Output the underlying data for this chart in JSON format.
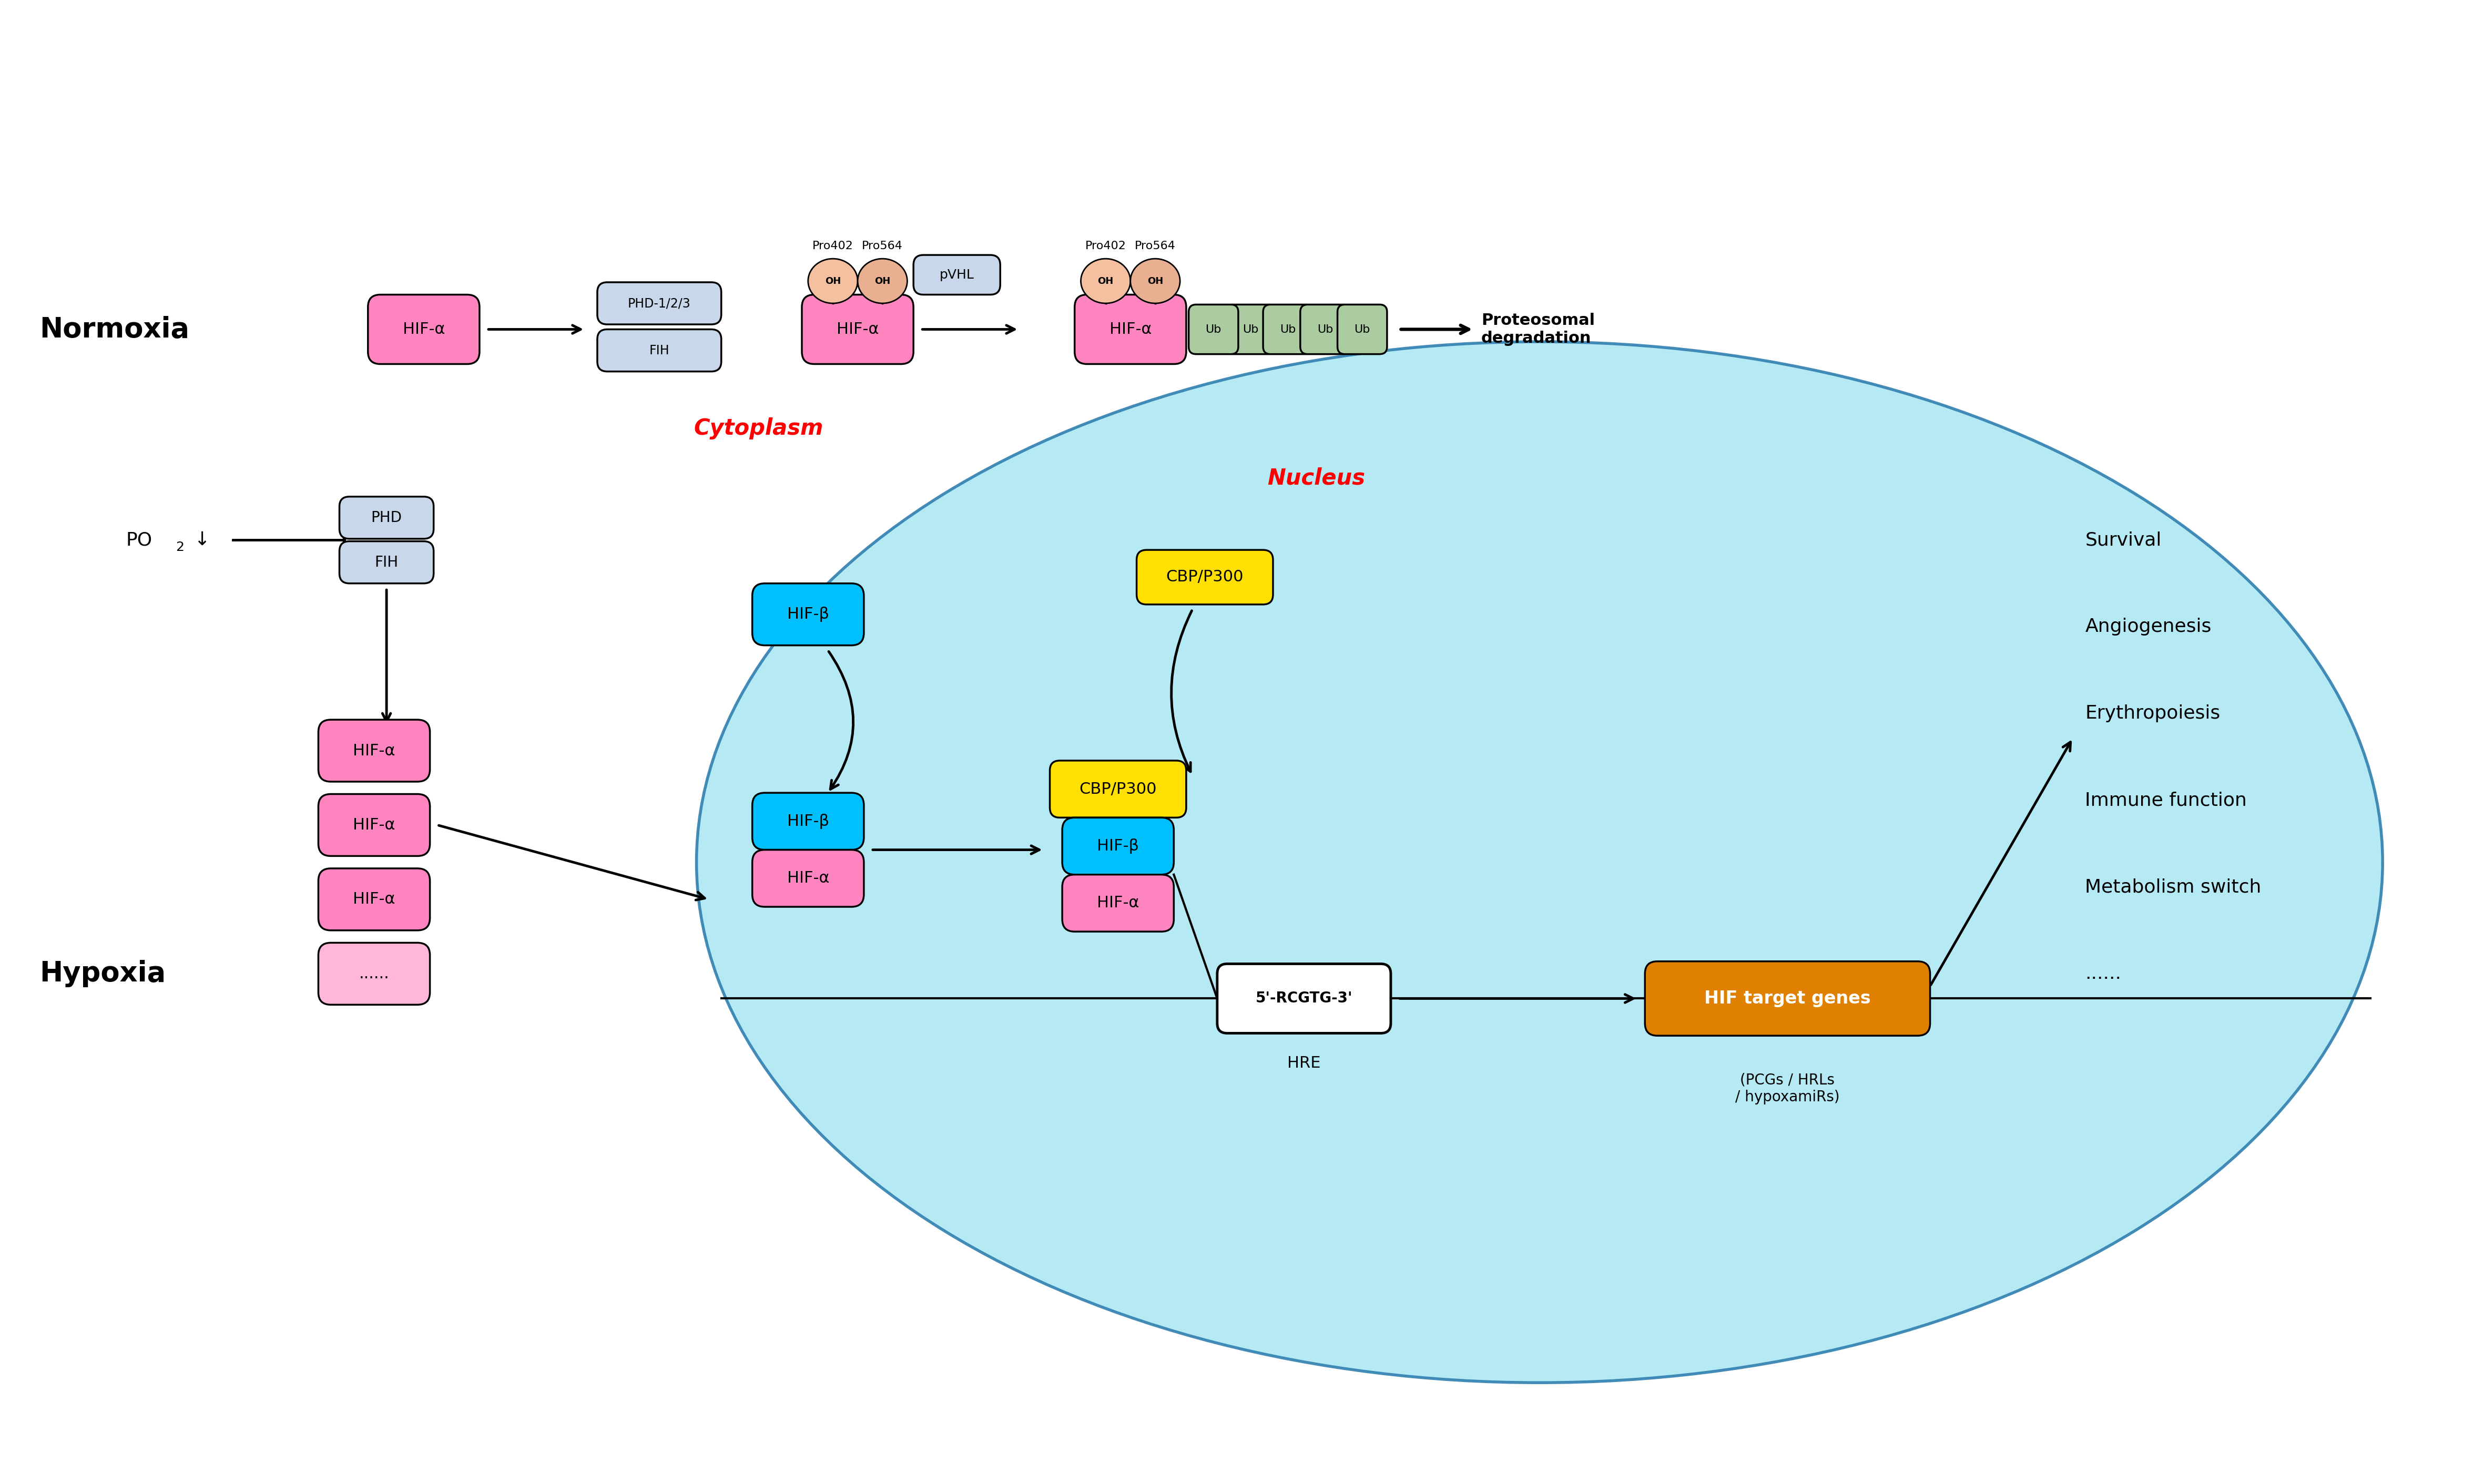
{
  "bg_color": "#ffffff",
  "normoxia_label": "Normoxia",
  "hypoxia_label": "Hypoxia",
  "cytoplasm_label": "Cytoplasm",
  "nucleus_label": "Nucleus",
  "hif_alpha_color": "#FF85C0",
  "hif_alpha_border": "#111111",
  "hif_beta_color": "#00BFFF",
  "hif_beta_border": "#000000",
  "phd_fih_color": "#C8D8EA",
  "phd_fih_border": "#000000",
  "oh_color_pink": "#F5C0A0",
  "oh_color_tan": "#E8B090",
  "pvhl_color": "#C8D8EA",
  "ub_color": "#AACCA0",
  "cbp_color": "#FFE000",
  "hre_color": "#FFFFFF",
  "hif_target_color": "#E08000",
  "ellipse_color": "#ADE8F4",
  "ellipse_edge": "#3080B0",
  "pro402_label": "Pro402",
  "pro564_label": "Pro564",
  "pvhl_label": "pVHL",
  "hre_label": "5'-RCGTG-3'",
  "hre_sublabel": "HRE",
  "hif_target_label": "HIF target genes",
  "hif_target_sublabel": "(PCGs / HRLs\n/ hypoxamiRs)",
  "survival_labels": [
    "Survival",
    "Angiogenesis",
    "Erythropoiesis",
    "Immune function",
    "Metabolism switch",
    "......"
  ],
  "cbp_label": "CBP/P300",
  "proteosomal_label": "Proteosomal\ndegradation"
}
